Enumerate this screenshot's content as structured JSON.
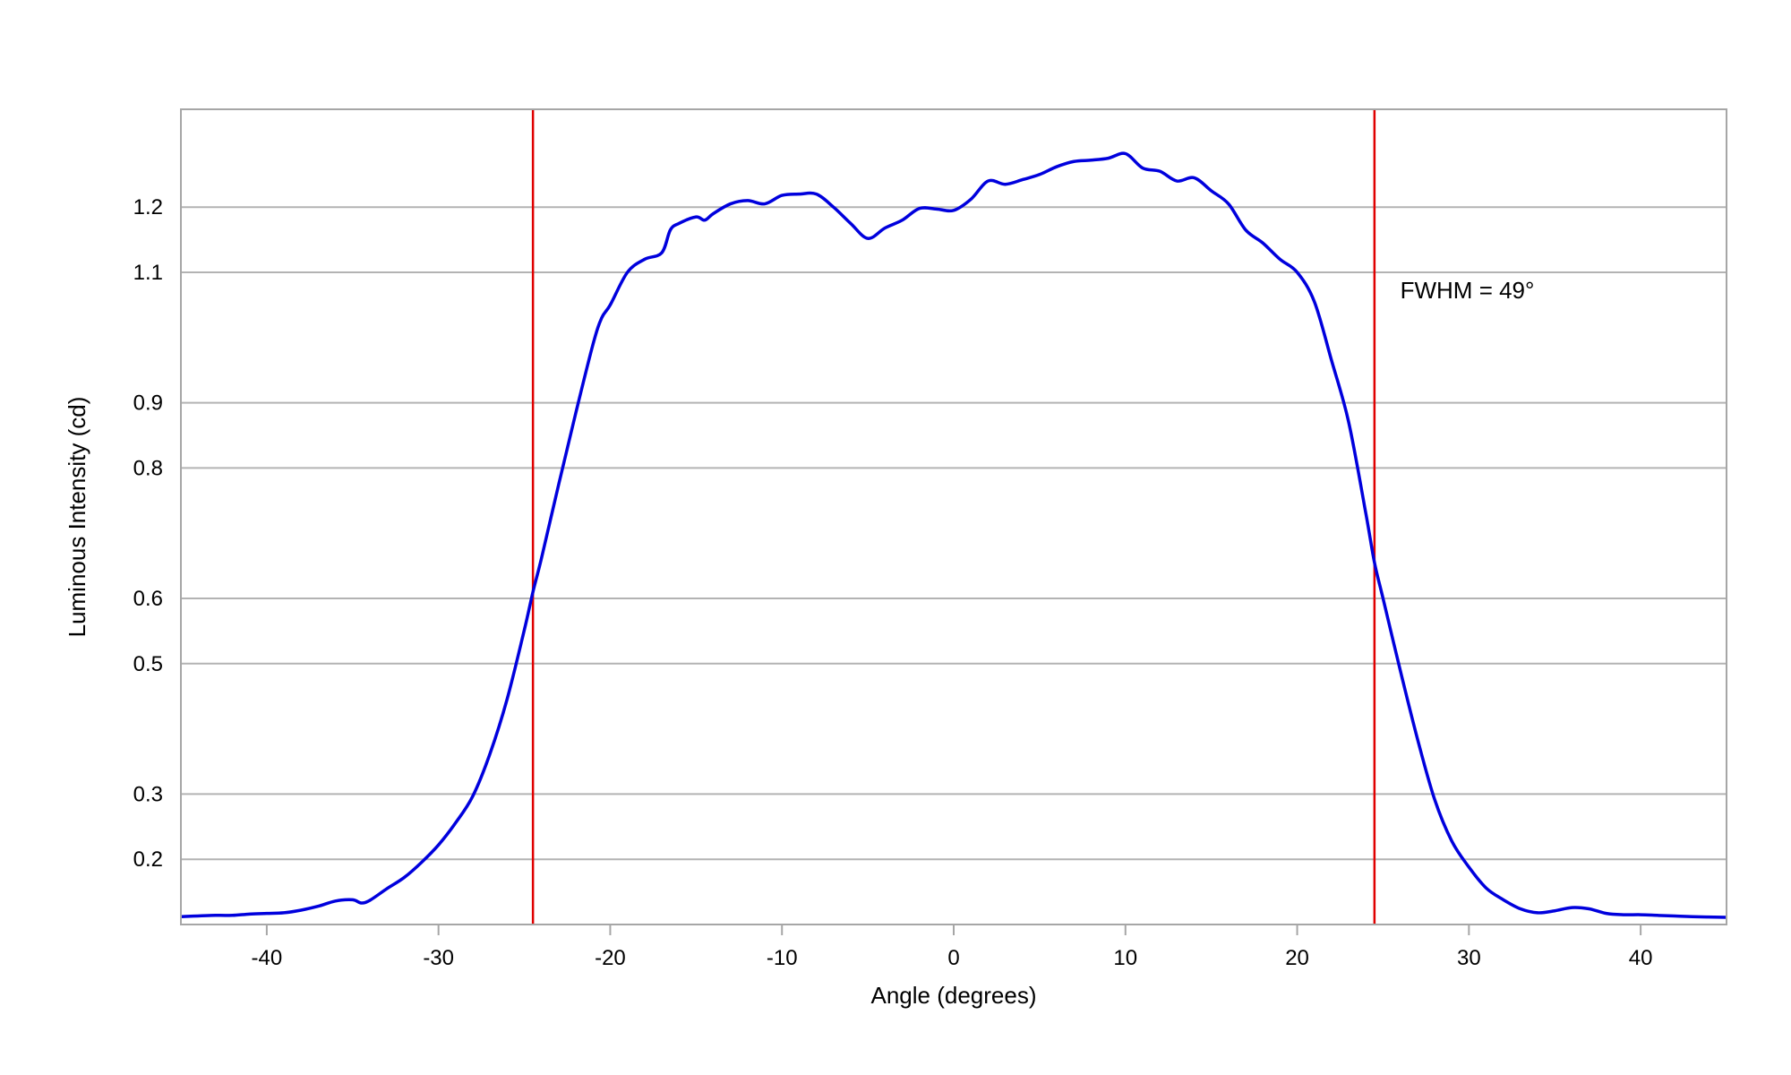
{
  "chart_data": {
    "type": "line",
    "xlabel": "Angle (degrees)",
    "ylabel": "Luminous Intensity (cd)",
    "xlim": [
      -45,
      45
    ],
    "ylim": [
      0.1,
      1.35
    ],
    "x_ticks": [
      "-40",
      "-30",
      "-20",
      "-10",
      "0",
      "10",
      "20",
      "30",
      "40"
    ],
    "y_ticks": [
      "0.2",
      "0.3",
      "0.5",
      "0.6",
      "0.8",
      "0.9",
      "1.1",
      "1.2"
    ],
    "grid": {
      "horizontal": true,
      "vertical": false
    },
    "annotation": {
      "text": "FWHM = 49°",
      "x": 26,
      "y": 1.06
    },
    "vlines": [
      {
        "x": -24.5,
        "color": "#e00000"
      },
      {
        "x": 24.5,
        "color": "#e00000"
      }
    ],
    "series": [
      {
        "color": "#0000dd",
        "points": [
          [
            -45,
            0.112
          ],
          [
            -43,
            0.114
          ],
          [
            -42,
            0.114
          ],
          [
            -41,
            0.116
          ],
          [
            -40,
            0.117
          ],
          [
            -39,
            0.118
          ],
          [
            -38,
            0.122
          ],
          [
            -37,
            0.128
          ],
          [
            -36,
            0.136
          ],
          [
            -35,
            0.138
          ],
          [
            -34.5,
            0.133
          ],
          [
            -34,
            0.137
          ],
          [
            -33,
            0.155
          ],
          [
            -32,
            0.172
          ],
          [
            -31,
            0.195
          ],
          [
            -30,
            0.222
          ],
          [
            -29,
            0.256
          ],
          [
            -28,
            0.297
          ],
          [
            -27,
            0.362
          ],
          [
            -26,
            0.446
          ],
          [
            -25,
            0.552
          ],
          [
            -24.5,
            0.61
          ],
          [
            -24,
            0.662
          ],
          [
            -23,
            0.775
          ],
          [
            -22,
            0.885
          ],
          [
            -21,
            0.99
          ],
          [
            -20.5,
            1.03
          ],
          [
            -20,
            1.05
          ],
          [
            -19,
            1.1
          ],
          [
            -18,
            1.12
          ],
          [
            -17,
            1.13
          ],
          [
            -16.5,
            1.165
          ],
          [
            -16,
            1.175
          ],
          [
            -15,
            1.185
          ],
          [
            -14.5,
            1.18
          ],
          [
            -14,
            1.19
          ],
          [
            -13,
            1.205
          ],
          [
            -12,
            1.21
          ],
          [
            -11,
            1.205
          ],
          [
            -10,
            1.218
          ],
          [
            -9,
            1.22
          ],
          [
            -8,
            1.22
          ],
          [
            -7,
            1.2
          ],
          [
            -6,
            1.175
          ],
          [
            -5,
            1.152
          ],
          [
            -4,
            1.168
          ],
          [
            -3,
            1.18
          ],
          [
            -2,
            1.198
          ],
          [
            -1,
            1.197
          ],
          [
            0,
            1.195
          ],
          [
            1,
            1.212
          ],
          [
            2,
            1.24
          ],
          [
            3,
            1.235
          ],
          [
            4,
            1.242
          ],
          [
            5,
            1.25
          ],
          [
            6,
            1.262
          ],
          [
            7,
            1.27
          ],
          [
            8,
            1.272
          ],
          [
            9,
            1.275
          ],
          [
            10,
            1.282
          ],
          [
            11,
            1.26
          ],
          [
            12,
            1.255
          ],
          [
            13,
            1.24
          ],
          [
            14,
            1.245
          ],
          [
            15,
            1.225
          ],
          [
            16,
            1.205
          ],
          [
            17,
            1.165
          ],
          [
            18,
            1.145
          ],
          [
            19,
            1.12
          ],
          [
            20,
            1.1
          ],
          [
            21,
            1.055
          ],
          [
            22,
            0.965
          ],
          [
            23,
            0.87
          ],
          [
            24,
            0.73
          ],
          [
            24.5,
            0.655
          ],
          [
            25,
            0.6
          ],
          [
            26,
            0.49
          ],
          [
            27,
            0.385
          ],
          [
            28,
            0.292
          ],
          [
            29,
            0.228
          ],
          [
            30,
            0.188
          ],
          [
            31,
            0.156
          ],
          [
            32,
            0.138
          ],
          [
            33,
            0.124
          ],
          [
            34,
            0.118
          ],
          [
            35,
            0.121
          ],
          [
            36,
            0.126
          ],
          [
            37,
            0.124
          ],
          [
            38,
            0.117
          ],
          [
            39,
            0.115
          ],
          [
            40,
            0.115
          ],
          [
            41,
            0.114
          ],
          [
            42,
            0.113
          ],
          [
            43,
            0.112
          ],
          [
            45,
            0.111
          ]
        ]
      }
    ]
  }
}
